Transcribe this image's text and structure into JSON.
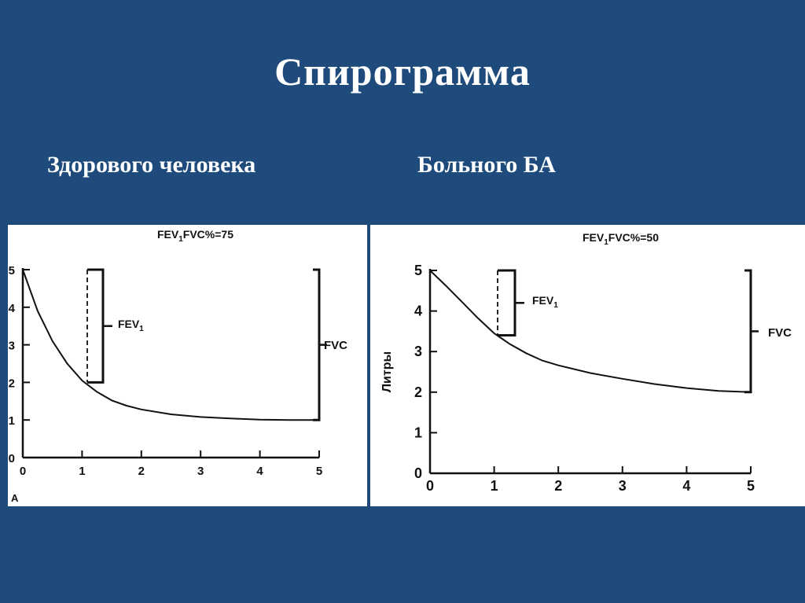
{
  "slide": {
    "title": "Спирограмма",
    "left_label": "Здорового человека",
    "right_label": "Больного БА"
  },
  "chart_data": [
    {
      "type": "line",
      "title": "FEV1FVC%=75",
      "title_main": "FEV",
      "title_sub": "1",
      "title_rest": "FVC%=75",
      "ylabel": "",
      "xlim": [
        0,
        5
      ],
      "ylim": [
        0,
        5
      ],
      "xticks": [
        "0",
        "1",
        "2",
        "3",
        "4",
        "5"
      ],
      "yticks": [
        "0",
        "1",
        "2",
        "3",
        "4",
        "5"
      ],
      "panel_letter": "A",
      "fev1_label_main": "FEV",
      "fev1_label_sub": "1",
      "fev1_range": [
        2,
        5
      ],
      "fvc_label": "FVC",
      "fvc_range": [
        1,
        5
      ],
      "series": [
        {
          "x": [
            0,
            0.25,
            0.5,
            0.75,
            1.0,
            1.25,
            1.5,
            1.75,
            2.0,
            2.5,
            3.0,
            3.5,
            4.0,
            4.5,
            4.75,
            5.0
          ],
          "y": [
            5.0,
            3.9,
            3.1,
            2.5,
            2.05,
            1.75,
            1.52,
            1.38,
            1.28,
            1.15,
            1.08,
            1.04,
            1.01,
            1.0,
            1.0,
            1.0
          ]
        }
      ]
    },
    {
      "type": "line",
      "title": "FEV1FVC%=50",
      "title_main": "FEV",
      "title_sub": "1",
      "title_rest": "FVC%=50",
      "ylabel": "Литры",
      "xlim": [
        0,
        5
      ],
      "ylim": [
        0,
        5
      ],
      "xticks": [
        "0",
        "1",
        "2",
        "3",
        "4",
        "5"
      ],
      "yticks": [
        "0",
        "1",
        "2",
        "3",
        "4",
        "5"
      ],
      "panel_letter": "",
      "fev1_label_main": "FEV",
      "fev1_label_sub": "1",
      "fev1_range": [
        3.4,
        5
      ],
      "fvc_label": "FVC",
      "fvc_range": [
        2,
        5
      ],
      "series": [
        {
          "x": [
            0,
            0.25,
            0.5,
            0.75,
            1.0,
            1.25,
            1.5,
            1.75,
            2.0,
            2.5,
            3.0,
            3.5,
            4.0,
            4.5,
            5.0
          ],
          "y": [
            5.0,
            4.62,
            4.22,
            3.82,
            3.45,
            3.18,
            2.96,
            2.78,
            2.66,
            2.47,
            2.33,
            2.2,
            2.1,
            2.03,
            2.0
          ]
        }
      ]
    }
  ]
}
